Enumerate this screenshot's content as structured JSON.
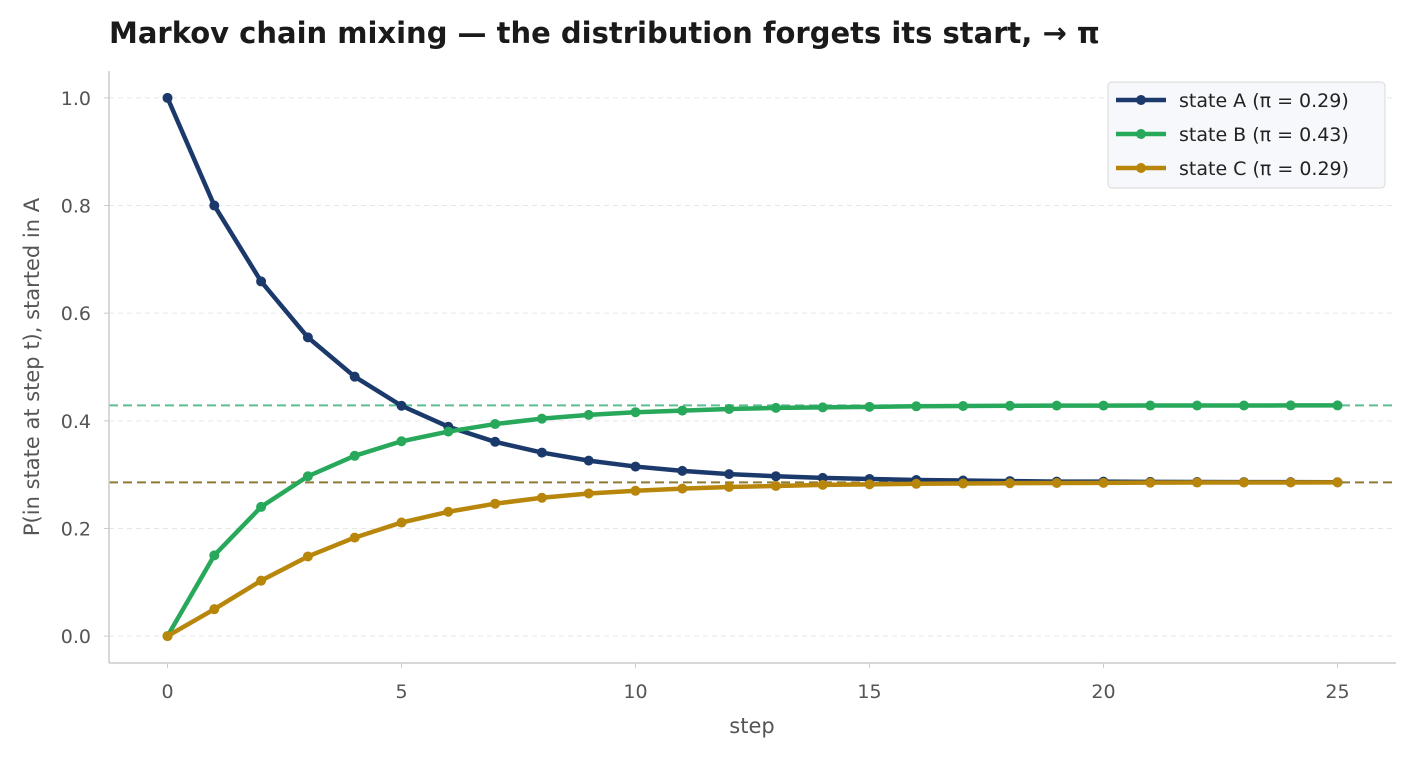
{
  "chart_data": {
    "type": "line",
    "title": "Markov chain mixing — the distribution forgets its start, → π",
    "xlabel": "step",
    "ylabel": "P(in state at step t), started in A",
    "xlim": [
      -1.25,
      26.25
    ],
    "ylim": [
      -0.05,
      1.05
    ],
    "xticks": [
      0,
      5,
      10,
      15,
      20,
      25
    ],
    "yticks": [
      0.0,
      0.2,
      0.4,
      0.6,
      0.8,
      1.0
    ],
    "xtick_labels": [
      "0",
      "5",
      "10",
      "15",
      "20",
      "25"
    ],
    "ytick_labels": [
      "0.0",
      "0.2",
      "0.4",
      "0.6",
      "0.8",
      "1.0"
    ],
    "grid": "horizontal dashed",
    "legend_position": "top-right",
    "x": [
      0,
      1,
      2,
      3,
      4,
      5,
      6,
      7,
      8,
      9,
      10,
      11,
      12,
      13,
      14,
      15,
      16,
      17,
      18,
      19,
      20,
      21,
      22,
      23,
      24,
      25
    ],
    "series": [
      {
        "name": "state A (π = 0.29)",
        "color": "#1b3a6b",
        "stationary": 0.2857,
        "values": [
          1.0,
          0.8,
          0.659,
          0.555,
          0.482,
          0.428,
          0.389,
          0.361,
          0.341,
          0.326,
          0.315,
          0.307,
          0.301,
          0.297,
          0.294,
          0.292,
          0.29,
          0.289,
          0.288,
          0.287,
          0.287,
          0.2865,
          0.2863,
          0.2861,
          0.286,
          0.2859
        ]
      },
      {
        "name": "state B (π = 0.43)",
        "color": "#27a85a",
        "stationary": 0.4286,
        "values": [
          0.0,
          0.15,
          0.24,
          0.297,
          0.335,
          0.362,
          0.38,
          0.394,
          0.404,
          0.411,
          0.416,
          0.419,
          0.422,
          0.424,
          0.425,
          0.426,
          0.427,
          0.4275,
          0.428,
          0.4282,
          0.4283,
          0.4284,
          0.4285,
          0.4285,
          0.4286,
          0.4286
        ]
      },
      {
        "name": "state C (π = 0.29)",
        "color": "#b8860b",
        "stationary": 0.2857,
        "values": [
          0.0,
          0.05,
          0.103,
          0.148,
          0.183,
          0.211,
          0.231,
          0.246,
          0.257,
          0.265,
          0.27,
          0.274,
          0.277,
          0.279,
          0.281,
          0.282,
          0.283,
          0.2836,
          0.2841,
          0.2845,
          0.2848,
          0.2851,
          0.2853,
          0.2854,
          0.2855,
          0.2856
        ]
      }
    ],
    "reference_lines": [
      {
        "value": 0.4286,
        "color": "#5bbf90"
      },
      {
        "value": 0.2857,
        "color": "#8f7a33"
      }
    ]
  }
}
